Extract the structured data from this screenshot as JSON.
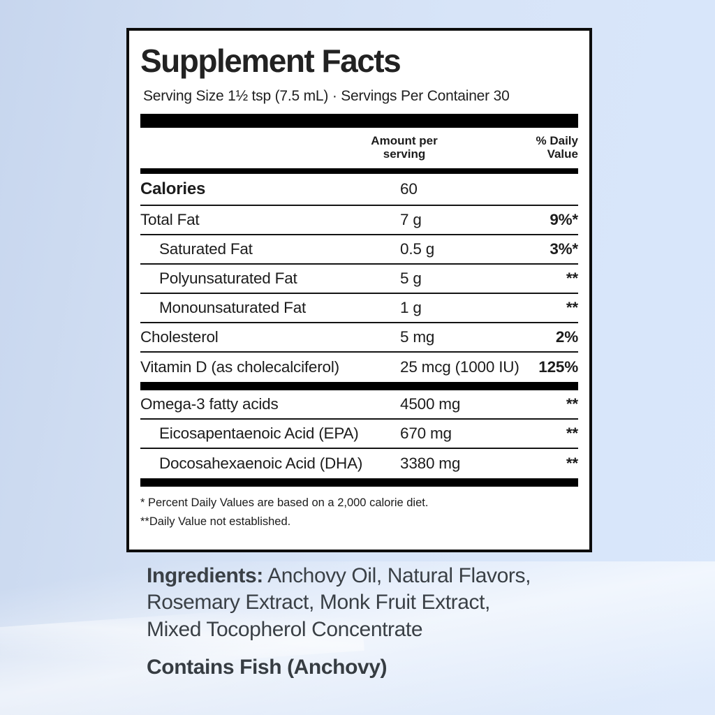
{
  "colors": {
    "background_left": "#c7d6ee",
    "background_right": "#d9e7fb",
    "panel_bg": "#ffffff",
    "panel_border": "#0d0d0d",
    "panel_text": "#1c1c1c",
    "below_text": "#3a4046"
  },
  "panel": {
    "title": "Supplement Facts",
    "serving_line": "Serving Size 1½ tsp (7.5 mL) · Servings Per Container 30",
    "columns": {
      "amount": "Amount per serving",
      "daily_value": "% Daily Value"
    },
    "calories": {
      "label": "Calories",
      "amount": "60",
      "dv": ""
    },
    "rows": [
      {
        "label": "Total Fat",
        "amount": "7 g",
        "dv": "9%*"
      },
      {
        "label": "Saturated Fat",
        "amount": "0.5 g",
        "dv": "3%*"
      },
      {
        "label": "Polyunsaturated Fat",
        "amount": "5 g",
        "dv": "**"
      },
      {
        "label": "Monounsaturated Fat",
        "amount": "1 g",
        "dv": "**"
      },
      {
        "label": "Cholesterol",
        "amount": "5 mg",
        "dv": "2%"
      },
      {
        "label": "Vitamin D (as cholecalciferol)",
        "amount": "25 mcg (1000 IU)",
        "dv": "125%"
      }
    ],
    "rows2": [
      {
        "label": "Omega-3 fatty acids",
        "amount": "4500 mg",
        "dv": "**"
      },
      {
        "label": "Eicosapentaenoic Acid (EPA)",
        "amount": "670 mg",
        "dv": "**"
      },
      {
        "label": "Docosahexaenoic Acid (DHA)",
        "amount": "3380 mg",
        "dv": "**"
      }
    ],
    "footnotes": {
      "line1": "* Percent Daily Values are based on a 2,000 calorie diet.",
      "line2": "**Daily Value not established."
    }
  },
  "below": {
    "ingredients_label": "Ingredients:",
    "ingredients_line1": "Anchovy Oil, Natural Flavors,",
    "ingredients_line2": "Rosemary Extract, Monk Fruit Extract,",
    "ingredients_line3": "Mixed Tocopherol Concentrate",
    "contains": "Contains Fish (Anchovy)"
  }
}
